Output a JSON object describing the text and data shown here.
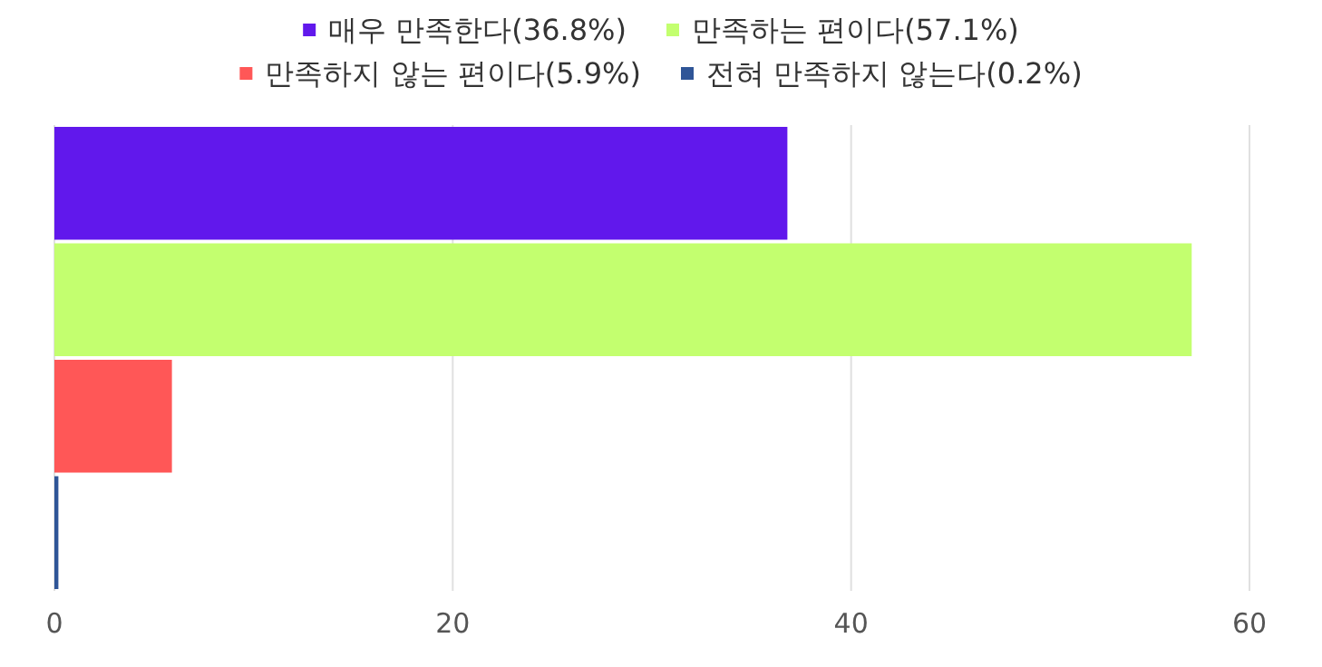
{
  "chart_data": {
    "type": "bar",
    "orientation": "horizontal",
    "categories": [
      null,
      null,
      null,
      null
    ],
    "series": [
      {
        "name": "매우 만족한다(36.8%)",
        "color": "#6118ec",
        "values": [
          36.8,
          null,
          null,
          null
        ]
      },
      {
        "name": "만족하는 편이다(57.1%)",
        "color": "#c3ff6f",
        "values": [
          null,
          57.1,
          null,
          null
        ]
      },
      {
        "name": "만족하지 않는 편이다(5.9%)",
        "color": "#ff5757",
        "values": [
          null,
          null,
          5.9,
          null
        ]
      },
      {
        "name": "전혀 만족하지 않는다(0.2%)",
        "color": "#2f5597",
        "values": [
          null,
          null,
          null,
          0.2
        ]
      }
    ],
    "xlim": [
      0,
      60
    ],
    "xticks": [
      0,
      20,
      40,
      60
    ],
    "grid": "x",
    "legend": "top",
    "tick_labels": "x"
  }
}
